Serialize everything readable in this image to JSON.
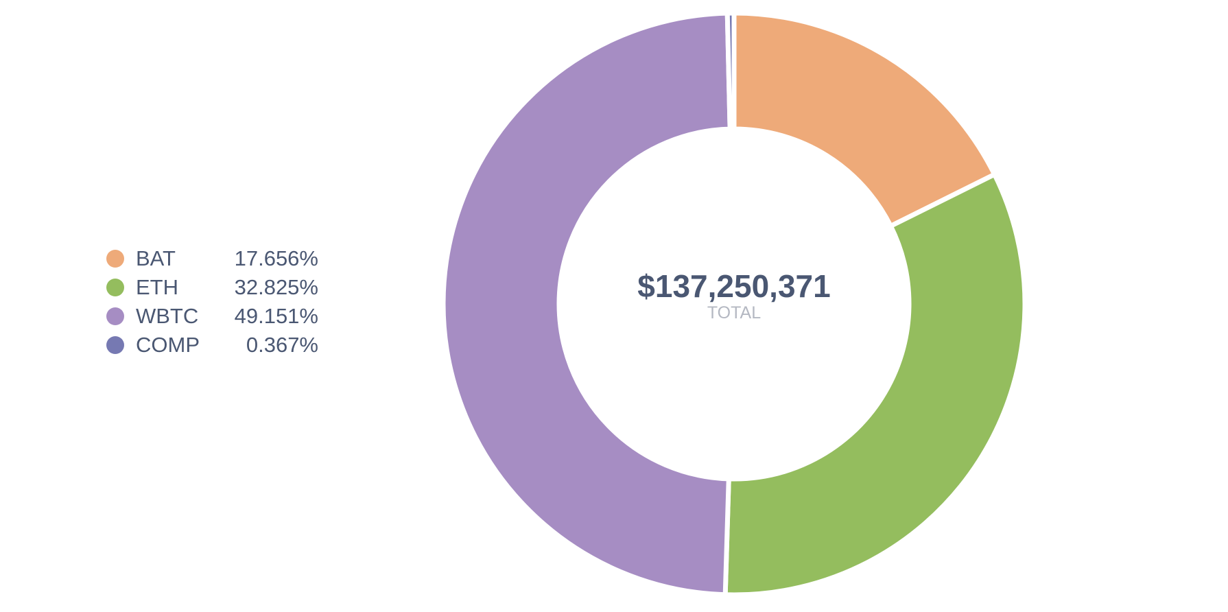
{
  "chart_data": {
    "type": "pie",
    "variant": "donut",
    "center": {
      "value": "$137,250,371",
      "label": "TOTAL"
    },
    "legend_position": "left",
    "slices": [
      {
        "name": "BAT",
        "percent_label": "17.656%",
        "value": 17.656,
        "color": "#eeaa79"
      },
      {
        "name": "ETH",
        "percent_label": "32.825%",
        "value": 32.825,
        "color": "#94bd5e"
      },
      {
        "name": "WBTC",
        "percent_label": "49.151%",
        "value": 49.151,
        "color": "#a68dc3"
      },
      {
        "name": "COMP",
        "percent_label": "0.367%",
        "value": 0.367,
        "color": "#7679b2"
      }
    ]
  }
}
